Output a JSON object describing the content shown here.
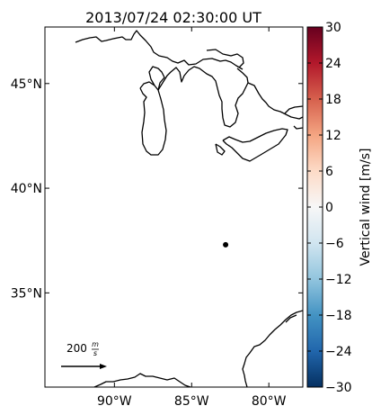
{
  "title": "2013/07/24 02:30:00 UT",
  "map": {
    "lat_ticks": [
      {
        "value": 45,
        "label": "45°N"
      },
      {
        "value": 40,
        "label": "40°N"
      },
      {
        "value": 35,
        "label": "35°N"
      }
    ],
    "lon_ticks": [
      {
        "value": -90,
        "label": "90°W"
      },
      {
        "value": -85,
        "label": "85°W"
      },
      {
        "value": -80,
        "label": "80°W"
      }
    ],
    "extent": {
      "lon_min": -94.5,
      "lon_max": -77.8,
      "lat_min": 30.5,
      "lat_max": 47.7
    },
    "station": {
      "lon": -82.8,
      "lat": 37.3
    },
    "reference_vector": {
      "magnitude": "200",
      "unit_num": "m",
      "unit_den": "s"
    }
  },
  "colorbar": {
    "label": "Vertical wind [m/s]",
    "min": -30,
    "max": 30,
    "ticks": [
      "30",
      "24",
      "18",
      "12",
      "6",
      "0",
      "−6",
      "−12",
      "−18",
      "−24",
      "−30"
    ],
    "colors": [
      "#053061",
      "#2166ac",
      "#4393c3",
      "#92c5de",
      "#d1e5f0",
      "#f7f7f7",
      "#fddbc7",
      "#f4a582",
      "#d6604d",
      "#b2182b",
      "#67001f"
    ]
  }
}
